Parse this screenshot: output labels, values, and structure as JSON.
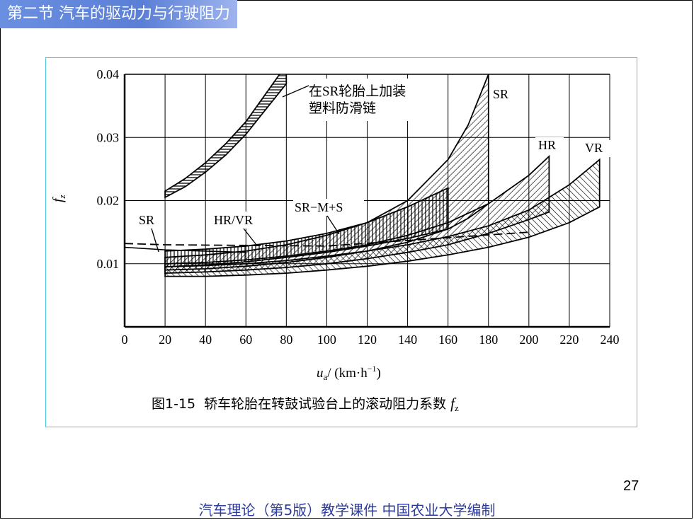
{
  "section_title": "第二节 汽车的驱动力与行驶阻力",
  "page_number": "27",
  "footer": "汽车理论（第5版）教学课件   中国农业大学编制",
  "colors": {
    "title_bg": "#6b8fe0",
    "frame": "#47c9e0",
    "footer_text": "#2e3c9e"
  },
  "chart_data": {
    "type": "area",
    "caption_prefix": "图1-15",
    "caption_text": "轿车轮胎在转鼓试验台上的滚动阻力系数",
    "caption_symbol": "f",
    "caption_sub": "z",
    "ylabel": "f",
    "ylabel_sub": "z",
    "xlabel_var": "u",
    "xlabel_sub": "a",
    "xlabel_unit": "/ (km·h",
    "xlabel_exp": "−1",
    "xlabel_close": ")",
    "xlim": [
      0,
      240
    ],
    "ylim": [
      0,
      0.04
    ],
    "x_ticks": [
      "0",
      "20",
      "40",
      "60",
      "80",
      "100",
      "120",
      "140",
      "160",
      "180",
      "200",
      "220",
      "240"
    ],
    "y_ticks": [
      "0.01",
      "0.02",
      "0.03",
      "0.04"
    ],
    "grid": true,
    "annotations": {
      "chain_line1": "在SR轮胎上加装",
      "chain_line2": "塑料防滑链",
      "sr_top": "SR",
      "hr": "HR",
      "vr": "VR",
      "sr_left": "SR",
      "hr_vr": "HR/VR",
      "sr_ms": "SR−M+S"
    },
    "series": [
      {
        "name": "在SR轮胎上加装塑料防滑链",
        "x": [
          20,
          30,
          40,
          50,
          60,
          70,
          80
        ],
        "lower": [
          0.0205,
          0.0222,
          0.0245,
          0.0272,
          0.0305,
          0.0345,
          0.0385
        ],
        "upper": [
          0.0215,
          0.0235,
          0.026,
          0.029,
          0.0325,
          0.037,
          0.0415
        ]
      },
      {
        "name": "SR",
        "x": [
          20,
          40,
          60,
          80,
          100,
          120,
          140,
          160,
          170,
          180
        ],
        "lower": [
          0.009,
          0.0092,
          0.0096,
          0.0102,
          0.011,
          0.012,
          0.0134,
          0.0155,
          0.0172,
          0.0195
        ],
        "upper": [
          0.011,
          0.0114,
          0.012,
          0.013,
          0.0145,
          0.0165,
          0.02,
          0.0265,
          0.032,
          0.04
        ]
      },
      {
        "name": "HR",
        "x": [
          20,
          40,
          60,
          80,
          100,
          120,
          140,
          160,
          180,
          200,
          210
        ],
        "lower": [
          0.0085,
          0.0087,
          0.009,
          0.0094,
          0.01,
          0.0108,
          0.0118,
          0.013,
          0.0148,
          0.017,
          0.0182
        ],
        "upper": [
          0.01,
          0.0102,
          0.0106,
          0.0112,
          0.012,
          0.013,
          0.0145,
          0.0165,
          0.0195,
          0.024,
          0.027
        ]
      },
      {
        "name": "VR",
        "x": [
          20,
          40,
          60,
          80,
          100,
          120,
          140,
          160,
          180,
          200,
          220,
          235
        ],
        "lower": [
          0.008,
          0.008,
          0.0082,
          0.0085,
          0.009,
          0.0096,
          0.0104,
          0.0114,
          0.0126,
          0.0142,
          0.0165,
          0.019
        ],
        "upper": [
          0.0095,
          0.0097,
          0.01,
          0.0105,
          0.0112,
          0.012,
          0.013,
          0.0143,
          0.016,
          0.0185,
          0.0225,
          0.0265
        ]
      },
      {
        "name": "SR−M+S",
        "x": [
          20,
          40,
          60,
          80,
          100,
          120,
          140,
          160
        ],
        "lower": [
          0.0095,
          0.0098,
          0.0103,
          0.011,
          0.0118,
          0.0128,
          0.014,
          0.0155
        ],
        "upper": [
          0.012,
          0.0123,
          0.0128,
          0.0136,
          0.0148,
          0.0165,
          0.019,
          0.022
        ]
      }
    ]
  }
}
